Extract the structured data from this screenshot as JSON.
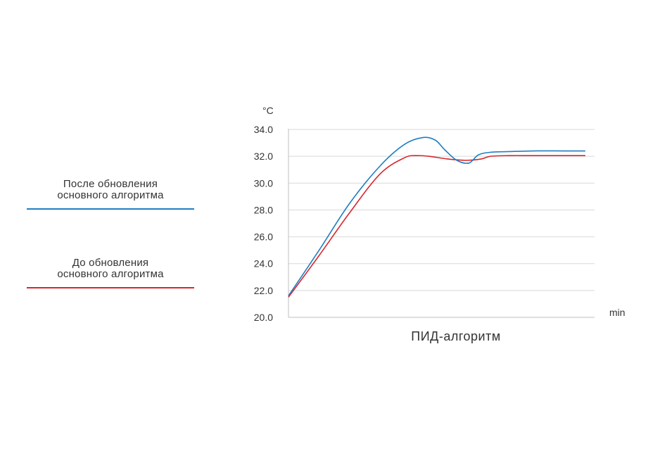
{
  "legend": {
    "items": [
      {
        "line1": "После обновления",
        "line2": "основного алгоритма",
        "color": "#1f7ec1"
      },
      {
        "line1": "До обновления",
        "line2": "основного алгоритма",
        "color": "#d8262e"
      }
    ]
  },
  "chart_data": {
    "type": "line",
    "title": "",
    "caption": "ПИД-алгоритм",
    "xlabel": "min",
    "ylabel": "°C",
    "ylim": [
      20,
      34
    ],
    "yticks": [
      "20.0",
      "22.0",
      "24.0",
      "26.0",
      "28.0",
      "30.0",
      "32.0",
      "34.0"
    ],
    "xlim": [
      0,
      100
    ],
    "grid": true,
    "legend_position": "left",
    "series": [
      {
        "name": "После обновления основного алгоритма",
        "color": "#1f7ec1",
        "x": [
          0,
          10,
          20,
          30,
          38,
          44,
          48,
          51,
          55,
          59,
          62,
          66,
          72,
          80,
          90,
          97
        ],
        "y": [
          21.6,
          25.0,
          28.5,
          31.3,
          32.9,
          33.4,
          33.2,
          32.5,
          31.7,
          31.5,
          32.1,
          32.3,
          32.35,
          32.4,
          32.4,
          32.4
        ]
      },
      {
        "name": "До обновления основного алгоритма",
        "color": "#d8262e",
        "x": [
          0,
          10,
          20,
          30,
          38,
          42,
          46,
          52,
          58,
          63,
          66,
          72,
          80,
          90,
          97
        ],
        "y": [
          21.5,
          24.6,
          27.8,
          30.7,
          31.9,
          32.05,
          32.0,
          31.8,
          31.7,
          31.8,
          32.0,
          32.05,
          32.05,
          32.05,
          32.05
        ]
      }
    ]
  }
}
